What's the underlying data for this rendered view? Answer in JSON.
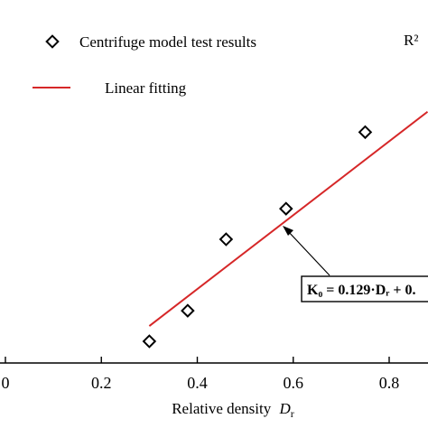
{
  "chart_data": {
    "type": "scatter",
    "xlabel": "Relative density",
    "xlabel_symbol": "D",
    "xlabel_subscript": "r",
    "xlim": [
      0,
      0.8
    ],
    "x_ticks": [
      {
        "value": 0.0,
        "label": "0"
      },
      {
        "value": 0.2,
        "label": "0.2"
      },
      {
        "value": 0.4,
        "label": "0.4"
      },
      {
        "value": 0.6,
        "label": "0.6"
      },
      {
        "value": 0.8,
        "label": "0.8"
      }
    ],
    "series": [
      {
        "name": "Centrifuge model test results",
        "kind": "scatter",
        "marker": "diamond-hollow",
        "color": "#000000",
        "x": [
          0.3,
          0.38,
          0.46,
          0.585,
          0.75
        ],
        "y": [
          0.426,
          0.432,
          0.446,
          0.452,
          0.467
        ]
      },
      {
        "name": "Linear fitting",
        "kind": "line",
        "color": "#d62728",
        "x": [
          0.3,
          0.88
        ],
        "y": [
          0.429,
          0.471
        ]
      }
    ],
    "annotations": {
      "r2_label": "R²",
      "equation_label": "K₀ = 0.129·Dᵣ + 0."
    },
    "legend_position": "top-left",
    "grid": false
  }
}
